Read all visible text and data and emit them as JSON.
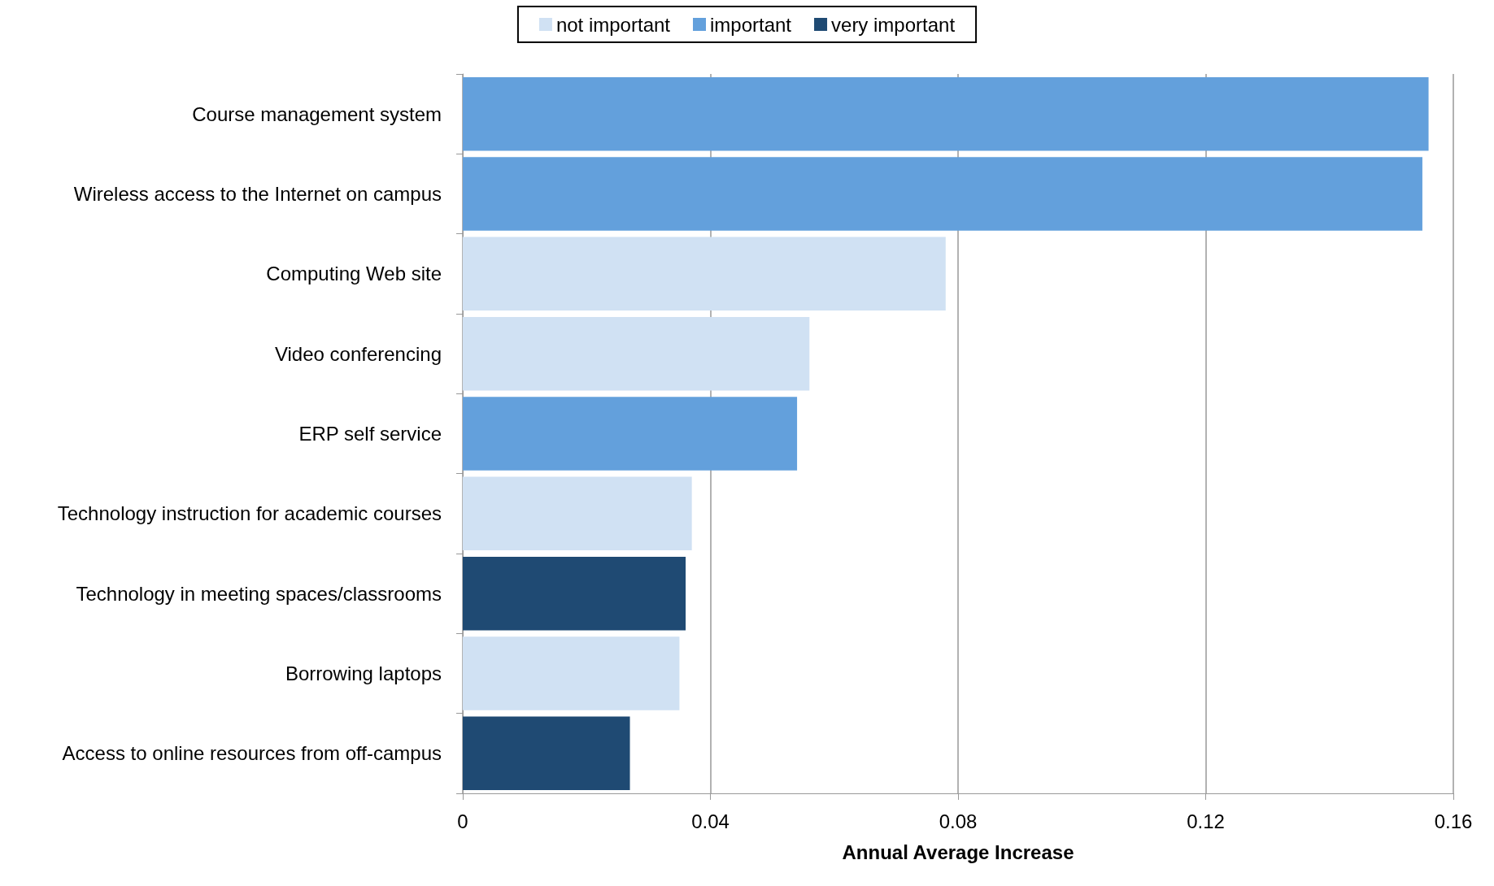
{
  "chart_data": {
    "type": "bar",
    "orientation": "horizontal",
    "stacked": true,
    "xlabel": "Annual Average Increase",
    "categories": [
      "Course management system",
      "Wireless access to the Internet on campus",
      "Computing Web site",
      "Video conferencing",
      "ERP self service",
      "Technology instruction for academic courses",
      "Technology in meeting spaces/classrooms",
      "Borrowing laptops",
      "Access to online resources from off-campus"
    ],
    "series": [
      {
        "name": "not important",
        "color": "#d0e1f3",
        "values": [
          null,
          null,
          0.078,
          0.056,
          null,
          0.037,
          null,
          0.035,
          null
        ]
      },
      {
        "name": "important",
        "color": "#63a0dc",
        "values": [
          0.156,
          0.155,
          null,
          null,
          0.054,
          null,
          null,
          null,
          null
        ]
      },
      {
        "name": "very important",
        "color": "#1f4a73",
        "values": [
          null,
          null,
          null,
          null,
          null,
          null,
          0.036,
          null,
          0.027
        ]
      }
    ],
    "xlim": [
      0,
      0.16
    ],
    "xticks": [
      0,
      0.04,
      0.08,
      0.12,
      0.16
    ],
    "grid": "x",
    "legend": "top"
  }
}
